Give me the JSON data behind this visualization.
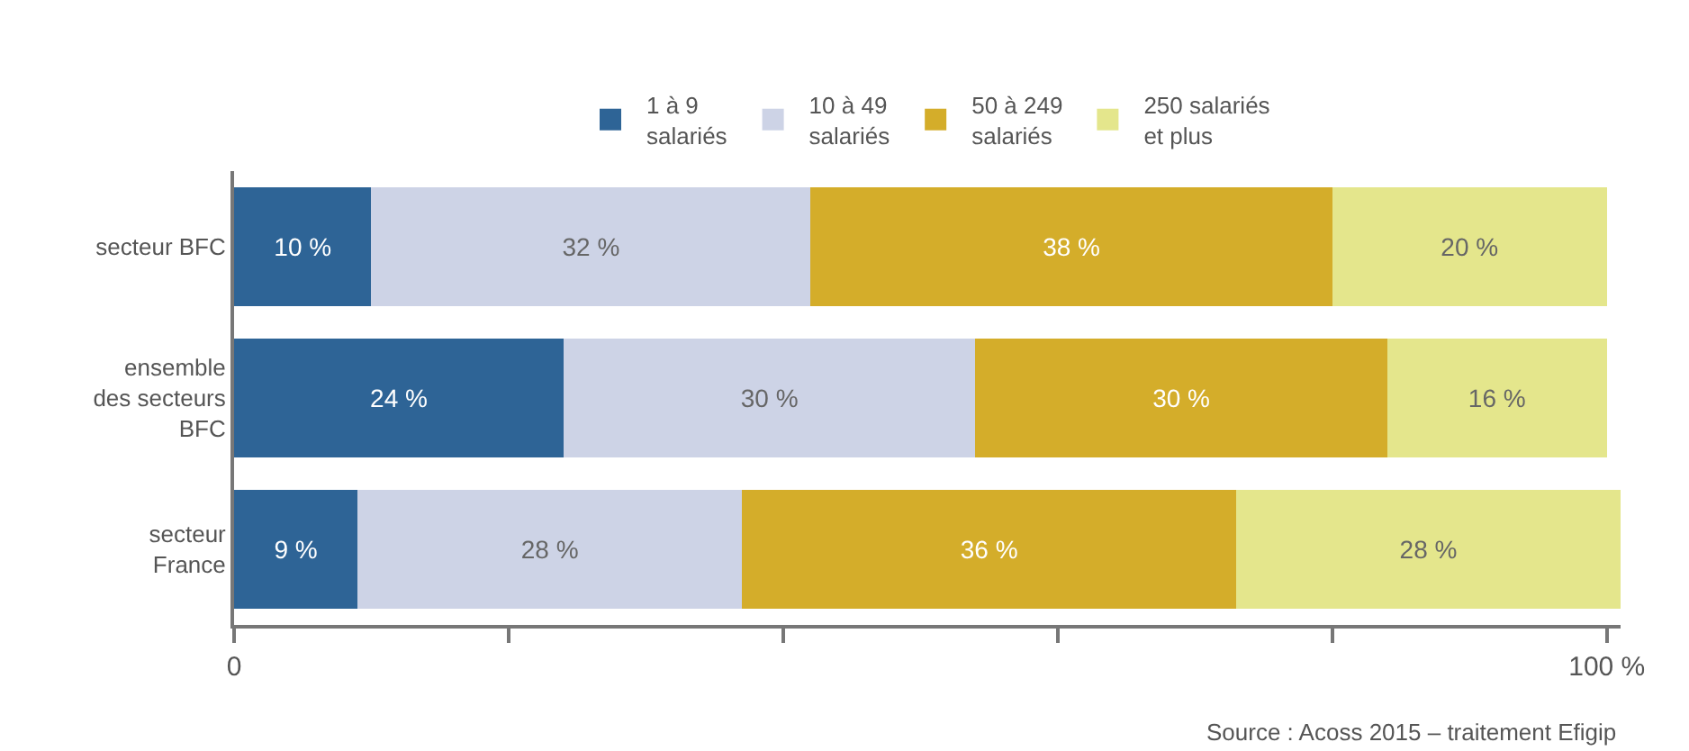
{
  "chart_data": {
    "type": "bar",
    "orientation": "horizontal",
    "stacked": true,
    "categories": [
      "secteur BFC",
      "ensemble\ndes secteurs\nBFC",
      "secteur\nFrance"
    ],
    "series": [
      {
        "name": "1 à 9\nsalariés",
        "color": "#2e6496",
        "values": [
          10,
          24,
          9
        ],
        "value_labels": [
          "10 %",
          "24 %",
          "9 %"
        ]
      },
      {
        "name": "10 à 49\nsalariés",
        "color": "#cdd3e6",
        "values": [
          32,
          30,
          28
        ],
        "value_labels": [
          "32 %",
          "30 %",
          "28 %"
        ]
      },
      {
        "name": "50 à 249\nsalariés",
        "color": "#d4ad2a",
        "values": [
          38,
          30,
          36
        ],
        "value_labels": [
          "38 %",
          "30 %",
          "36 %"
        ]
      },
      {
        "name": "250 salariés\net plus",
        "color": "#e4e68c",
        "values": [
          20,
          16,
          28
        ],
        "value_labels": [
          "20 %",
          "16 %",
          "28 %"
        ]
      }
    ],
    "xlim": [
      0,
      101
    ],
    "xticks": [
      0,
      {
        "value": 20,
        "label": null
      },
      {
        "value": 40,
        "label": null
      },
      {
        "value": 60,
        "label": null
      },
      {
        "value": 80,
        "label": null
      },
      {
        "value": 100,
        "label": "100 %"
      }
    ],
    "legend": "top",
    "annotations": [
      "Source : Acoss 2015 – traitement Efigip"
    ]
  }
}
